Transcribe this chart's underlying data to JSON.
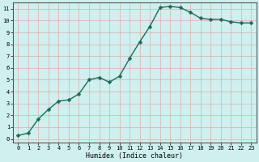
{
  "x": [
    0,
    1,
    2,
    3,
    4,
    5,
    6,
    7,
    8,
    9,
    10,
    11,
    12,
    13,
    14,
    15,
    16,
    17,
    18,
    19,
    20,
    21,
    22,
    23
  ],
  "y": [
    0.3,
    0.5,
    1.7,
    2.5,
    3.2,
    3.3,
    3.8,
    5.0,
    5.2,
    4.8,
    5.3,
    6.8,
    8.2,
    9.5,
    11.1,
    11.2,
    11.1,
    10.7,
    10.2,
    10.1,
    10.1,
    9.9,
    9.8,
    9.8
  ],
  "xlabel": "Humidex (Indice chaleur)",
  "bg_color": "#cff0ee",
  "line_color": "#1a6b5a",
  "grid_color": "#d8b8b8",
  "xlim_min": -0.5,
  "xlim_max": 23.5,
  "ylim_min": -0.3,
  "ylim_max": 11.5,
  "yticks": [
    0,
    1,
    2,
    3,
    4,
    5,
    6,
    7,
    8,
    9,
    10,
    11
  ],
  "xticks": [
    0,
    1,
    2,
    3,
    4,
    5,
    6,
    7,
    8,
    9,
    10,
    11,
    12,
    13,
    14,
    15,
    16,
    17,
    18,
    19,
    20,
    21,
    22,
    23
  ],
  "marker_size": 2.5,
  "line_width": 1.0,
  "xlabel_fontsize": 6.0,
  "tick_fontsize": 5.0
}
